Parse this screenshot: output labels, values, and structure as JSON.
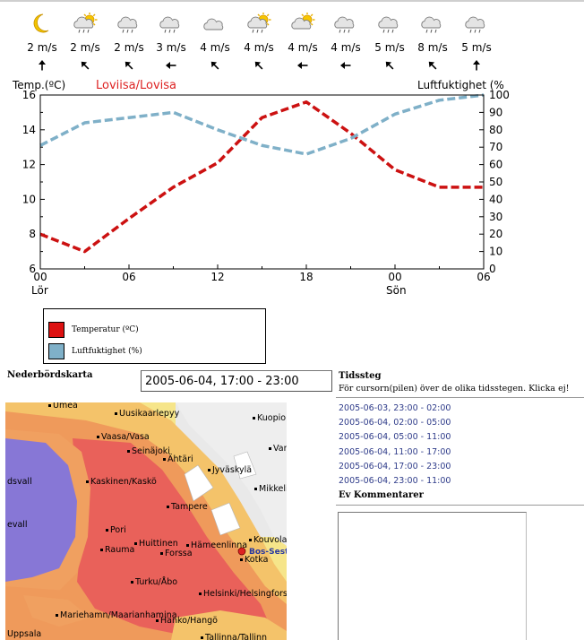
{
  "forecast": [
    {
      "icon": "moon-icon",
      "speed": "2 m/s",
      "direction": "north-arrow-icon"
    },
    {
      "icon": "sun-cloud-rain-icon",
      "speed": "2 m/s",
      "direction": "northwest-arrow-icon"
    },
    {
      "icon": "cloud-rain-icon",
      "speed": "2 m/s",
      "direction": "northwest-arrow-icon"
    },
    {
      "icon": "cloud-rain-icon",
      "speed": "3 m/s",
      "direction": "west-arrow-icon"
    },
    {
      "icon": "cloud-icon",
      "speed": "4 m/s",
      "direction": "northwest-arrow-icon"
    },
    {
      "icon": "sun-cloud-rain-icon",
      "speed": "4 m/s",
      "direction": "northwest-arrow-icon"
    },
    {
      "icon": "sun-cloud-icon",
      "speed": "4 m/s",
      "direction": "west-arrow-icon"
    },
    {
      "icon": "cloud-rain-icon",
      "speed": "4 m/s",
      "direction": "west-arrow-icon"
    },
    {
      "icon": "cloud-rain-icon",
      "speed": "5 m/s",
      "direction": "northwest-arrow-icon"
    },
    {
      "icon": "cloud-rain-icon",
      "speed": "8 m/s",
      "direction": "northwest-arrow-icon"
    },
    {
      "icon": "cloud-rain-icon",
      "speed": "5 m/s",
      "direction": "north-arrow-icon"
    }
  ],
  "chart_data": {
    "type": "line",
    "title": "Loviisa/Lovisa",
    "title_color": "#dd2222",
    "y_left_label": "Temp.(ºC)",
    "y_right_label": "Luftfuktighet (%",
    "y_left_range": [
      6,
      16
    ],
    "y_right_range": [
      0,
      100
    ],
    "y_left_ticks": [
      6,
      8,
      10,
      12,
      14,
      16
    ],
    "y_right_ticks": [
      0,
      10,
      20,
      30,
      40,
      50,
      60,
      70,
      80,
      90,
      100
    ],
    "x_hours": [
      0,
      3,
      6,
      9,
      12,
      15,
      18,
      21,
      24,
      27,
      30
    ],
    "x_ticks": [
      {
        "hour": 0,
        "label": "00",
        "sub": "Lör"
      },
      {
        "hour": 6,
        "label": "06",
        "sub": ""
      },
      {
        "hour": 12,
        "label": "12",
        "sub": ""
      },
      {
        "hour": 18,
        "label": "18",
        "sub": ""
      },
      {
        "hour": 24,
        "label": "00",
        "sub": "Sön"
      },
      {
        "hour": 30,
        "label": "06",
        "sub": ""
      }
    ],
    "series": [
      {
        "name": "Temperatur (ºC)",
        "color": "#cc1111",
        "axis": "left",
        "values": [
          8.0,
          7.0,
          8.9,
          10.7,
          12.1,
          14.7,
          15.6,
          13.8,
          11.7,
          10.7,
          10.7
        ]
      },
      {
        "name": "Luftfuktighet (%)",
        "color": "#7fb0c8",
        "axis": "right",
        "values": [
          71,
          84,
          87,
          90,
          80,
          71,
          66,
          75,
          89,
          97,
          100
        ]
      }
    ]
  },
  "legend": {
    "items": [
      {
        "label": "Temperatur (ºC)",
        "color": "#dd1111"
      },
      {
        "label": "Luftfuktighet (%)",
        "color": "#7fb0c8"
      }
    ]
  },
  "precip": {
    "title": "Nederbördskarta",
    "period_value": "2005-06-04, 17:00 - 23:00"
  },
  "map": {
    "places": [
      "Umea",
      "Uusikaarlepyy",
      "Kuopio",
      "Vaasa/Vasa",
      "Seinäjoki",
      "Ähtäri",
      "Jyväskylä",
      "Varkaus",
      "dsvall",
      "Kaskinen/Kaskö",
      "Mikkeli",
      "Tampere",
      "evall",
      "Pori",
      "Huittinen",
      "Hämeenlinna",
      "Kouvola",
      "Rauma",
      "Forssa",
      "Kotka",
      "Turku/Åbo",
      "Helsinki/Helsingfors",
      "Mariehamn/Maarianhamina",
      "Hanko/Hangö",
      "Uppsala",
      "Tallinna/Tallinn"
    ],
    "marker_label": "Bos-Sestu"
  },
  "timesteps": {
    "title": "Tidssteg",
    "help": "För cursorn(pilen) över de olika tidsstegen. Klicka ej!",
    "items": [
      "2005-06-03, 23:00 - 02:00",
      "2005-06-04, 02:00 - 05:00",
      "2005-06-04, 05:00 - 11:00",
      "2005-06-04, 11:00 - 17:00",
      "2005-06-04, 17:00 - 23:00",
      "2005-06-04, 23:00 - 11:00"
    ]
  },
  "comments": {
    "title": "Ev Kommentarer"
  }
}
